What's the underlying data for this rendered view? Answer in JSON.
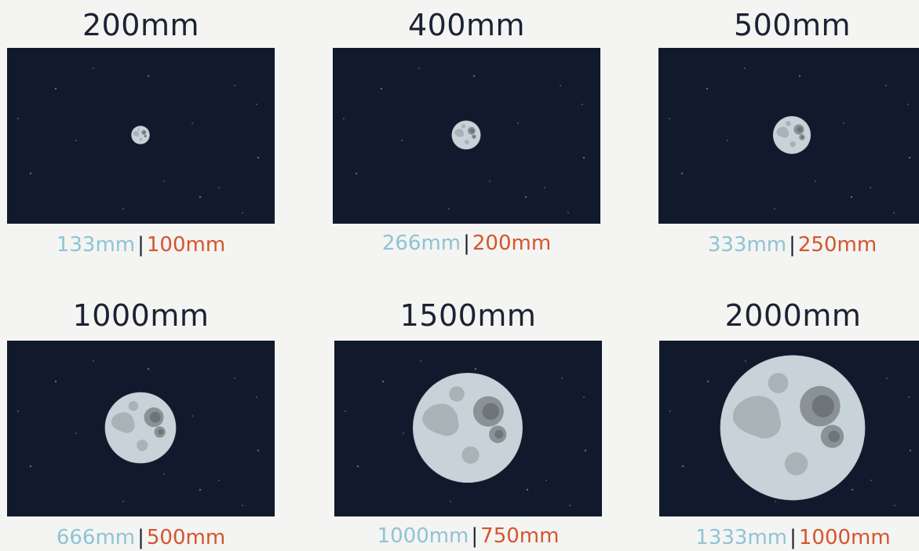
{
  "panels": [
    {
      "title": "200mm",
      "equiv_a": "133mm",
      "sep": "|",
      "equiv_b": "100mm",
      "moon_scale": 0.1
    },
    {
      "title": "400mm",
      "equiv_a": "266mm",
      "sep": "|",
      "equiv_b": "200mm",
      "moon_scale": 0.16
    },
    {
      "title": "500mm",
      "equiv_a": "333mm",
      "sep": "|",
      "equiv_b": "250mm",
      "moon_scale": 0.21
    },
    {
      "title": "1000mm",
      "equiv_a": "666mm",
      "sep": "|",
      "equiv_b": "500mm",
      "moon_scale": 0.4
    },
    {
      "title": "1500mm",
      "equiv_a": "1000mm",
      "sep": "|",
      "equiv_b": "750mm",
      "moon_scale": 0.62
    },
    {
      "title": "2000mm",
      "equiv_a": "1333mm",
      "sep": "|",
      "equiv_b": "1000mm",
      "moon_scale": 0.82
    }
  ],
  "colors": {
    "sky": "#111a2c",
    "moon": "#c7d3d8",
    "moon_edge": "#aebbc1",
    "crater": "#a9b2b6",
    "crater_dark": "#8a9296",
    "crater_inner": "#6e7579",
    "star": "#5d6a80",
    "equiv_a": "#8fc3d6",
    "equiv_b": "#d4552d"
  }
}
